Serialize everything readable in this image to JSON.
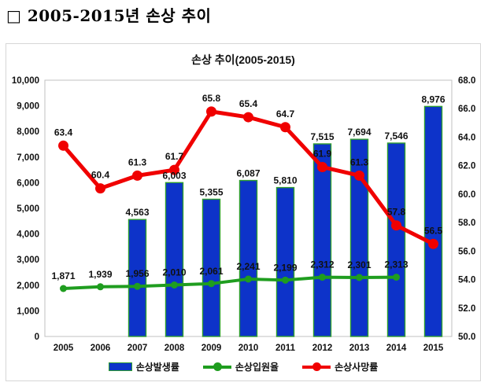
{
  "page_header": "□ 2005-2015년 손상 추이",
  "chart_data": {
    "type": "combo-bar-line",
    "title": "손상 추이(2005-2015)",
    "categories": [
      "2005",
      "2006",
      "2007",
      "2008",
      "2009",
      "2010",
      "2011",
      "2012",
      "2013",
      "2014",
      "2015"
    ],
    "series": [
      {
        "name": "손상발생률",
        "type": "bar",
        "axis": "left",
        "color": "#0d33c9",
        "border_color": "#2f9e2f",
        "values": [
          null,
          null,
          4563,
          6003,
          5355,
          6087,
          5810,
          7515,
          7694,
          7546,
          8976
        ],
        "labels": [
          null,
          null,
          "4,563",
          "6,003",
          "5,355",
          "6,087",
          "5,810",
          "7,515",
          "7,694",
          "7,546",
          "8,976"
        ]
      },
      {
        "name": "손상입원율",
        "type": "line",
        "axis": "left",
        "color": "#1f9d1f",
        "values": [
          1871,
          1939,
          1956,
          2010,
          2061,
          2241,
          2199,
          2312,
          2301,
          2313,
          null
        ],
        "labels": [
          "1,871",
          "1,939",
          "1,956",
          "2,010",
          "2,061",
          "2,241",
          "2,199",
          "2,312",
          "2,301",
          "2,313",
          null
        ]
      },
      {
        "name": "손상사망률",
        "type": "line",
        "axis": "right",
        "color": "#f00000",
        "values": [
          63.4,
          60.4,
          61.3,
          61.7,
          65.8,
          65.4,
          64.7,
          61.9,
          61.3,
          57.8,
          56.5
        ],
        "labels": [
          "63.4",
          "60.4",
          "61.3",
          "61.7",
          "65.8",
          "65.4",
          "64.7",
          "61.9",
          "61.3",
          "57.8",
          "56.5"
        ]
      }
    ],
    "left_axis": {
      "min": 0,
      "max": 10000,
      "step": 1000,
      "tick_labels": [
        "0",
        "1,000",
        "2,000",
        "3,000",
        "4,000",
        "5,000",
        "6,000",
        "7,000",
        "8,000",
        "9,000",
        "10,000"
      ]
    },
    "right_axis": {
      "min": 50,
      "max": 68,
      "step": 2,
      "tick_labels": [
        "50.0",
        "52.0",
        "54.0",
        "56.0",
        "58.0",
        "60.0",
        "62.0",
        "64.0",
        "66.0",
        "68.0"
      ]
    },
    "grid": false,
    "legend_position": "bottom",
    "plot_border_color": "#c0c0c0",
    "label_color": "#111111"
  }
}
